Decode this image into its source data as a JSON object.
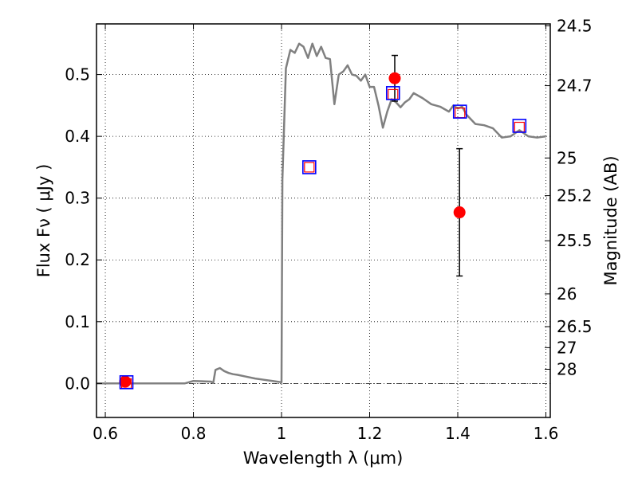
{
  "chart_data": {
    "type": "line",
    "xlabel": "Wavelength  λ (μm)",
    "ylabel": "Flux  Fν  ( μJy )",
    "ylabel_right": "Magnitude (AB)",
    "xlim": [
      0.58,
      1.61
    ],
    "ylim": [
      -0.055,
      0.582
    ],
    "x_ticks": [
      0.6,
      0.8,
      1.0,
      1.2,
      1.4,
      1.6
    ],
    "x_tick_labels": [
      "0.6",
      "0.8",
      "1",
      "1.2",
      "1.4",
      "1.6"
    ],
    "y_ticks": [
      0.0,
      0.1,
      0.2,
      0.3,
      0.4,
      0.5
    ],
    "y_tick_labels": [
      "0.0",
      "0.1",
      "0.2",
      "0.3",
      "0.4",
      "0.5"
    ],
    "right_ticks": [
      {
        "label": "24.5",
        "flux": 0.579
      },
      {
        "label": "24.7",
        "flux": 0.482
      },
      {
        "label": "25",
        "flux": 0.365
      },
      {
        "label": "25.2",
        "flux": 0.304
      },
      {
        "label": "25.5",
        "flux": 0.231
      },
      {
        "label": "26",
        "flux": 0.145
      },
      {
        "label": "26.5",
        "flux": 0.092
      },
      {
        "label": "27",
        "flux": 0.058
      },
      {
        "label": "28",
        "flux": 0.023
      }
    ],
    "grid": true,
    "zero_line": true,
    "series": [
      {
        "style": "line",
        "color": "#808080",
        "x": [
          0.58,
          0.78,
          0.8,
          0.84,
          0.845,
          0.85,
          0.86,
          0.87,
          0.88,
          0.89,
          0.9,
          0.92,
          0.94,
          0.96,
          0.98,
          1.0,
          1.002,
          1.01,
          1.02,
          1.03,
          1.04,
          1.05,
          1.06,
          1.07,
          1.08,
          1.09,
          1.1,
          1.11,
          1.12,
          1.13,
          1.14,
          1.15,
          1.16,
          1.17,
          1.18,
          1.19,
          1.2,
          1.21,
          1.22,
          1.23,
          1.24,
          1.25,
          1.26,
          1.27,
          1.28,
          1.29,
          1.3,
          1.32,
          1.34,
          1.36,
          1.38,
          1.39,
          1.4,
          1.41,
          1.42,
          1.44,
          1.46,
          1.48,
          1.5,
          1.52,
          1.54,
          1.56,
          1.58,
          1.6
        ],
        "y": [
          0.0,
          0.0,
          0.004,
          0.003,
          0.001,
          0.022,
          0.025,
          0.02,
          0.017,
          0.015,
          0.014,
          0.011,
          0.008,
          0.006,
          0.004,
          0.002,
          0.33,
          0.51,
          0.54,
          0.535,
          0.55,
          0.545,
          0.527,
          0.55,
          0.53,
          0.545,
          0.527,
          0.525,
          0.452,
          0.5,
          0.505,
          0.515,
          0.5,
          0.498,
          0.49,
          0.5,
          0.48,
          0.48,
          0.45,
          0.414,
          0.44,
          0.46,
          0.455,
          0.447,
          0.455,
          0.46,
          0.47,
          0.462,
          0.452,
          0.448,
          0.44,
          0.45,
          0.445,
          0.448,
          0.435,
          0.42,
          0.418,
          0.413,
          0.398,
          0.4,
          0.41,
          0.4,
          0.398,
          0.4
        ]
      },
      {
        "style": "errorbar",
        "color": "#ff0000",
        "points": [
          {
            "x": 0.645,
            "y": 0.003,
            "yerr": 0.004
          },
          {
            "x": 1.257,
            "y": 0.494,
            "yerr": 0.037
          },
          {
            "x": 1.404,
            "y": 0.277,
            "yerr": 0.103
          }
        ]
      },
      {
        "style": "open-square",
        "color": "#ff0000",
        "points": [
          {
            "x": 0.648,
            "y": 0.0
          },
          {
            "x": 1.063,
            "y": 0.35
          },
          {
            "x": 1.253,
            "y": 0.468
          },
          {
            "x": 1.405,
            "y": 0.438
          },
          {
            "x": 1.54,
            "y": 0.415
          }
        ]
      },
      {
        "style": "open-square-large",
        "color": "#0000ff",
        "points": [
          {
            "x": 0.648,
            "y": 0.002
          },
          {
            "x": 1.063,
            "y": 0.35
          },
          {
            "x": 1.253,
            "y": 0.47
          },
          {
            "x": 1.405,
            "y": 0.44
          },
          {
            "x": 1.54,
            "y": 0.417
          }
        ]
      }
    ]
  }
}
